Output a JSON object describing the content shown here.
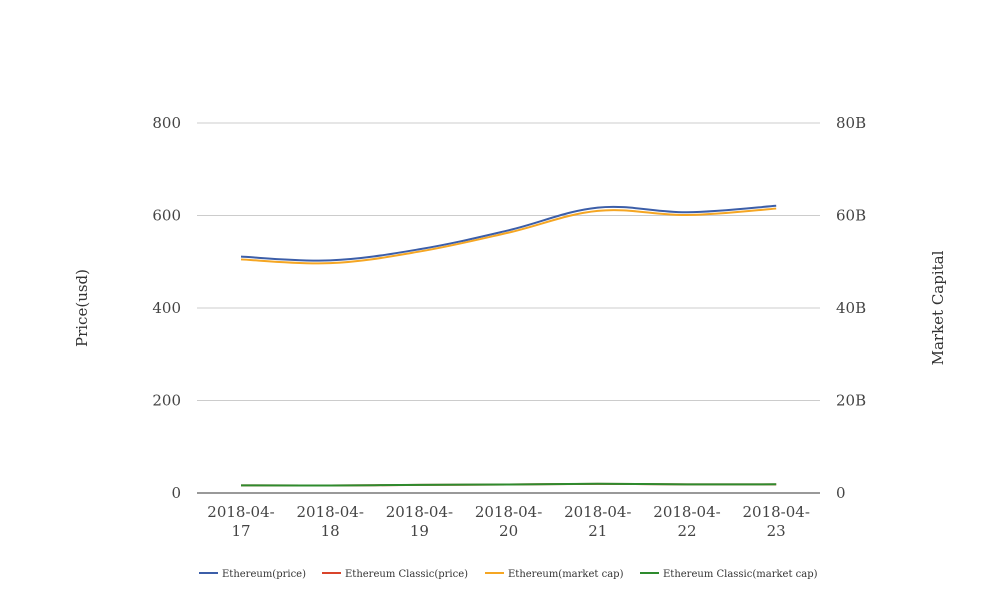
{
  "chart_data": {
    "type": "line",
    "x": [
      "2018-04-17",
      "2018-04-18",
      "2018-04-19",
      "2018-04-20",
      "2018-04-21",
      "2018-04-22",
      "2018-04-23"
    ],
    "x_tick_labels": [
      [
        "2018-04-",
        "17"
      ],
      [
        "2018-04-",
        "18"
      ],
      [
        "2018-04-",
        "19"
      ],
      [
        "2018-04-",
        "20"
      ],
      [
        "2018-04-",
        "21"
      ],
      [
        "2018-04-",
        "22"
      ],
      [
        "2018-04-",
        "23"
      ]
    ],
    "ylabel": "Price(usd)",
    "y2label": "Market Capital",
    "ylim": [
      0,
      800
    ],
    "y2lim": [
      0,
      80000000000
    ],
    "y_ticks": [
      "0",
      "200",
      "400",
      "600",
      "800"
    ],
    "y2_ticks": [
      "0",
      "20B",
      "40B",
      "60B",
      "80B"
    ],
    "grid": true,
    "legend_position": "bottom",
    "series": [
      {
        "name": "Ethereum(price)",
        "axis": "left",
        "color": "#3c5ea8",
        "values": [
          511,
          503,
          527,
          568,
          617,
          607,
          621
        ]
      },
      {
        "name": "Ethereum Classic(price)",
        "axis": "left",
        "color": "#d9442b",
        "values": [
          16.5,
          16.2,
          17.5,
          18.3,
          19.8,
          18.6,
          18.7
        ]
      },
      {
        "name": "Ethereum(market cap)",
        "axis": "right",
        "color": "#f5a623",
        "values": [
          50500000000,
          49700000000,
          52200000000,
          56300000000,
          61000000000,
          60100000000,
          61500000000
        ]
      },
      {
        "name": "Ethereum Classic(market cap)",
        "axis": "right",
        "color": "#2e8b2e",
        "values": [
          1650000000,
          1620000000,
          1760000000,
          1840000000,
          1990000000,
          1870000000,
          1880000000
        ]
      }
    ]
  }
}
